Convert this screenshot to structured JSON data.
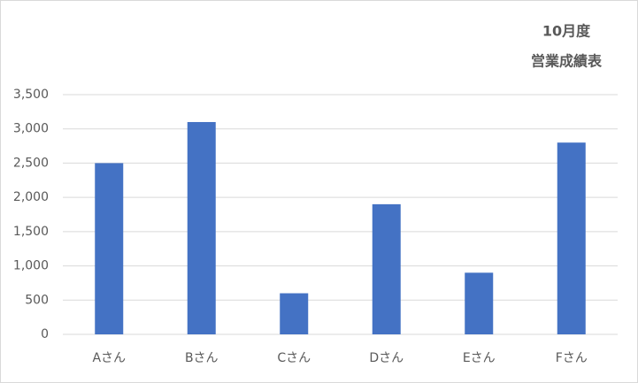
{
  "chart_data": {
    "type": "bar",
    "title": "10月度",
    "subtitle": "営業成績表",
    "categories": [
      "Aさん",
      "Bさん",
      "Cさん",
      "Dさん",
      "Eさん",
      "Fさん"
    ],
    "values": [
      2500,
      3100,
      600,
      1900,
      900,
      2800
    ],
    "color": "#4472c4",
    "ylim": [
      0,
      3500
    ],
    "yticks": [
      0,
      500,
      {
        "value": 1000,
        "label": "1,000"
      },
      {
        "value": 1500,
        "label": "1,500"
      },
      {
        "value": 2000,
        "label": "2,000"
      },
      {
        "value": 2500,
        "label": "2,500"
      },
      {
        "value": 3000,
        "label": "3,000"
      },
      {
        "value": 3500,
        "label": "3,500"
      }
    ],
    "grid": true
  }
}
